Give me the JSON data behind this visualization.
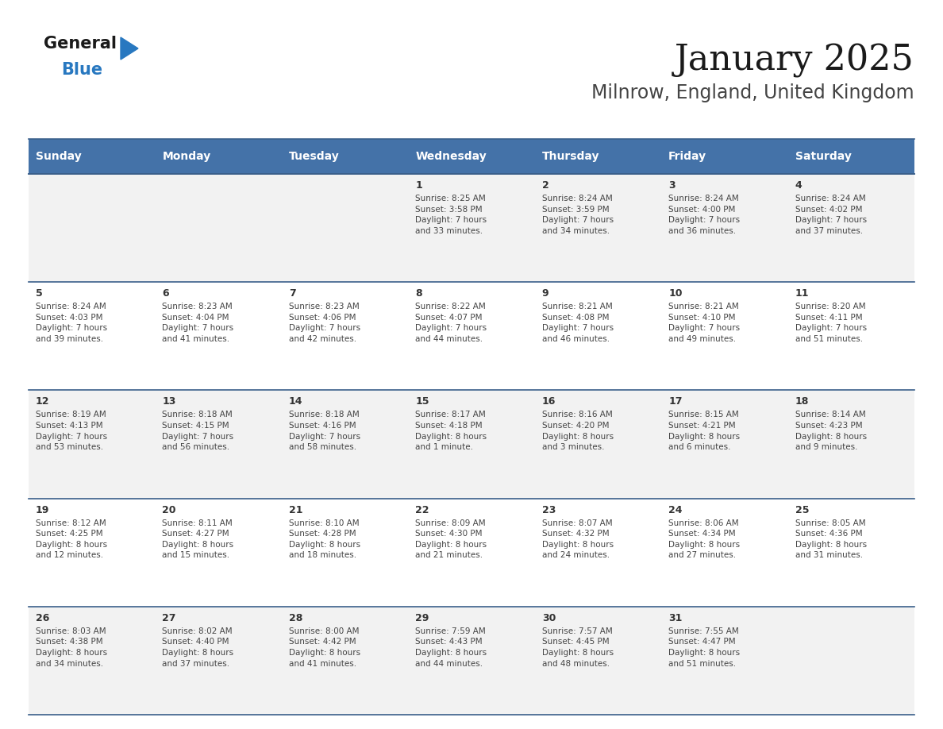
{
  "title": "January 2025",
  "subtitle": "Milnrow, England, United Kingdom",
  "header_bg": "#4472A8",
  "header_text_color": "#FFFFFF",
  "row_bg_odd": "#F2F2F2",
  "row_bg_even": "#FFFFFF",
  "cell_text_color": "#444444",
  "day_number_color": "#333333",
  "days_of_week": [
    "Sunday",
    "Monday",
    "Tuesday",
    "Wednesday",
    "Thursday",
    "Friday",
    "Saturday"
  ],
  "calendar": [
    [
      {
        "day": null,
        "sunrise": null,
        "sunset": null,
        "daylight": null
      },
      {
        "day": null,
        "sunrise": null,
        "sunset": null,
        "daylight": null
      },
      {
        "day": null,
        "sunrise": null,
        "sunset": null,
        "daylight": null
      },
      {
        "day": 1,
        "sunrise": "8:25 AM",
        "sunset": "3:58 PM",
        "daylight": "7 hours\nand 33 minutes."
      },
      {
        "day": 2,
        "sunrise": "8:24 AM",
        "sunset": "3:59 PM",
        "daylight": "7 hours\nand 34 minutes."
      },
      {
        "day": 3,
        "sunrise": "8:24 AM",
        "sunset": "4:00 PM",
        "daylight": "7 hours\nand 36 minutes."
      },
      {
        "day": 4,
        "sunrise": "8:24 AM",
        "sunset": "4:02 PM",
        "daylight": "7 hours\nand 37 minutes."
      }
    ],
    [
      {
        "day": 5,
        "sunrise": "8:24 AM",
        "sunset": "4:03 PM",
        "daylight": "7 hours\nand 39 minutes."
      },
      {
        "day": 6,
        "sunrise": "8:23 AM",
        "sunset": "4:04 PM",
        "daylight": "7 hours\nand 41 minutes."
      },
      {
        "day": 7,
        "sunrise": "8:23 AM",
        "sunset": "4:06 PM",
        "daylight": "7 hours\nand 42 minutes."
      },
      {
        "day": 8,
        "sunrise": "8:22 AM",
        "sunset": "4:07 PM",
        "daylight": "7 hours\nand 44 minutes."
      },
      {
        "day": 9,
        "sunrise": "8:21 AM",
        "sunset": "4:08 PM",
        "daylight": "7 hours\nand 46 minutes."
      },
      {
        "day": 10,
        "sunrise": "8:21 AM",
        "sunset": "4:10 PM",
        "daylight": "7 hours\nand 49 minutes."
      },
      {
        "day": 11,
        "sunrise": "8:20 AM",
        "sunset": "4:11 PM",
        "daylight": "7 hours\nand 51 minutes."
      }
    ],
    [
      {
        "day": 12,
        "sunrise": "8:19 AM",
        "sunset": "4:13 PM",
        "daylight": "7 hours\nand 53 minutes."
      },
      {
        "day": 13,
        "sunrise": "8:18 AM",
        "sunset": "4:15 PM",
        "daylight": "7 hours\nand 56 minutes."
      },
      {
        "day": 14,
        "sunrise": "8:18 AM",
        "sunset": "4:16 PM",
        "daylight": "7 hours\nand 58 minutes."
      },
      {
        "day": 15,
        "sunrise": "8:17 AM",
        "sunset": "4:18 PM",
        "daylight": "8 hours\nand 1 minute."
      },
      {
        "day": 16,
        "sunrise": "8:16 AM",
        "sunset": "4:20 PM",
        "daylight": "8 hours\nand 3 minutes."
      },
      {
        "day": 17,
        "sunrise": "8:15 AM",
        "sunset": "4:21 PM",
        "daylight": "8 hours\nand 6 minutes."
      },
      {
        "day": 18,
        "sunrise": "8:14 AM",
        "sunset": "4:23 PM",
        "daylight": "8 hours\nand 9 minutes."
      }
    ],
    [
      {
        "day": 19,
        "sunrise": "8:12 AM",
        "sunset": "4:25 PM",
        "daylight": "8 hours\nand 12 minutes."
      },
      {
        "day": 20,
        "sunrise": "8:11 AM",
        "sunset": "4:27 PM",
        "daylight": "8 hours\nand 15 minutes."
      },
      {
        "day": 21,
        "sunrise": "8:10 AM",
        "sunset": "4:28 PM",
        "daylight": "8 hours\nand 18 minutes."
      },
      {
        "day": 22,
        "sunrise": "8:09 AM",
        "sunset": "4:30 PM",
        "daylight": "8 hours\nand 21 minutes."
      },
      {
        "day": 23,
        "sunrise": "8:07 AM",
        "sunset": "4:32 PM",
        "daylight": "8 hours\nand 24 minutes."
      },
      {
        "day": 24,
        "sunrise": "8:06 AM",
        "sunset": "4:34 PM",
        "daylight": "8 hours\nand 27 minutes."
      },
      {
        "day": 25,
        "sunrise": "8:05 AM",
        "sunset": "4:36 PM",
        "daylight": "8 hours\nand 31 minutes."
      }
    ],
    [
      {
        "day": 26,
        "sunrise": "8:03 AM",
        "sunset": "4:38 PM",
        "daylight": "8 hours\nand 34 minutes."
      },
      {
        "day": 27,
        "sunrise": "8:02 AM",
        "sunset": "4:40 PM",
        "daylight": "8 hours\nand 37 minutes."
      },
      {
        "day": 28,
        "sunrise": "8:00 AM",
        "sunset": "4:42 PM",
        "daylight": "8 hours\nand 41 minutes."
      },
      {
        "day": 29,
        "sunrise": "7:59 AM",
        "sunset": "4:43 PM",
        "daylight": "8 hours\nand 44 minutes."
      },
      {
        "day": 30,
        "sunrise": "7:57 AM",
        "sunset": "4:45 PM",
        "daylight": "8 hours\nand 48 minutes."
      },
      {
        "day": 31,
        "sunrise": "7:55 AM",
        "sunset": "4:47 PM",
        "daylight": "8 hours\nand 51 minutes."
      },
      {
        "day": null,
        "sunrise": null,
        "sunset": null,
        "daylight": null
      }
    ]
  ],
  "logo_general_color": "#1a1a1a",
  "logo_blue_color": "#2878C0",
  "logo_triangle_color": "#2878C0",
  "border_color": "#3A5F8A",
  "title_fontsize": 32,
  "subtitle_fontsize": 17,
  "header_fontsize": 10,
  "day_num_fontsize": 9,
  "cell_fontsize": 7.5
}
